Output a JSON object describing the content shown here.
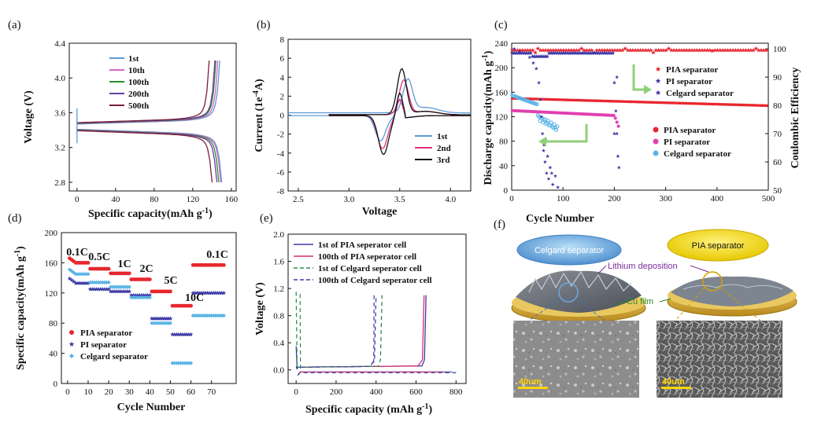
{
  "colors": {
    "c1": "#5b9bd5",
    "c10": "#d966c5",
    "c100": "#2e8b2e",
    "c200": "#6a3fa0",
    "c500": "#7a1f3a",
    "b1": "#5b9bd5",
    "b2": "#e0307a",
    "b3": "#111111",
    "pia": "#e8262e",
    "pi": "#3d3aa8",
    "celg": "#5ab4e5",
    "e1": "#3d3aa8",
    "e2": "#d92d7a",
    "e3": "#2e8b4a",
    "e4": "#3d3aa8",
    "arrow": "#8fd07a"
  },
  "chart_data": [
    {
      "id": "a",
      "panel_label": "(a)",
      "type": "line",
      "xlabel": "Specific capacity(mAh g",
      "xlabel_sup": "-1",
      "xlabel_tail": ")",
      "ylabel": "Voltage (V)",
      "xlim": [
        -8,
        165
      ],
      "ylim": [
        2.7,
        4.4
      ],
      "xticks": [
        0,
        40,
        80,
        120,
        160
      ],
      "yticks": [
        2.8,
        3.2,
        3.6,
        4.0,
        4.4
      ],
      "legend_position": "top-center",
      "series": [
        {
          "name": "1st",
          "color_key": "c1",
          "charge_end": 148,
          "discharge_end": 150
        },
        {
          "name": "10th",
          "color_key": "c10",
          "charge_end": 146,
          "discharge_end": 149
        },
        {
          "name": "100th",
          "color_key": "c100",
          "charge_end": 144,
          "discharge_end": 147
        },
        {
          "name": "200th",
          "color_key": "c200",
          "charge_end": 143,
          "discharge_end": 145
        },
        {
          "name": "500th",
          "color_key": "c500",
          "charge_end": 137,
          "discharge_end": 140
        }
      ]
    },
    {
      "id": "b",
      "panel_label": "(b)",
      "type": "line",
      "xlabel": "Voltage",
      "ylabel": "Current (1e",
      "ylabel_sup": "-4",
      "ylabel_tail": "A)",
      "xlim": [
        2.4,
        4.2
      ],
      "ylim": [
        -8,
        8
      ],
      "xticks": [
        2.5,
        3.0,
        3.5,
        4.0
      ],
      "yticks": [
        -8,
        -6,
        -4,
        -2,
        0,
        2,
        4,
        6,
        8
      ],
      "legend_position": "bottom-right",
      "series": [
        {
          "name": "1st",
          "color_key": "b1",
          "ox_peak": [
            3.58,
            3.4
          ],
          "red_peak": [
            3.31,
            -2.6
          ]
        },
        {
          "name": "2nd",
          "color_key": "b2",
          "ox_peak": [
            3.54,
            3.6
          ],
          "red_peak": [
            3.33,
            -3.4
          ]
        },
        {
          "name": "3rd",
          "color_key": "b3",
          "ox_peak": [
            3.52,
            4.8
          ],
          "red_peak": [
            3.34,
            -4.0
          ]
        }
      ]
    },
    {
      "id": "c",
      "panel_label": "(c)",
      "type": "scatter",
      "xlabel": "Cycle Number",
      "ylabel": "Discharge capacity(mAh g",
      "ylabel_sup": "-1",
      "ylabel_tail": ")",
      "ylabel_right": "Coulombic Efficiency",
      "xlim": [
        0,
        500
      ],
      "ylim": [
        0,
        240
      ],
      "ylim_right": [
        50,
        102
      ],
      "xticks": [
        0,
        100,
        200,
        300,
        400,
        500
      ],
      "yticks": [
        0,
        40,
        80,
        120,
        160,
        200,
        240
      ],
      "yticks_right": [
        50,
        60,
        70,
        80,
        90,
        100
      ],
      "legend_top": [
        "PIA separator",
        "PI separator",
        "Celgard separator"
      ],
      "legend_bottom": [
        "PIA separator",
        "PI separator",
        "Celgard separator"
      ],
      "series_summary": {
        "pia_capacity": {
          "start": 150,
          "end": 138,
          "cycles": 500
        },
        "pi_capacity": {
          "start": 130,
          "at_200": 122,
          "fails_at": 210
        },
        "celgard_capacity": {
          "start": 155,
          "fails_at": 90
        },
        "pia_ce": 99.5,
        "pi_ce_start": 98.5,
        "celgard_ce_start": 100
      }
    },
    {
      "id": "d",
      "panel_label": "(d)",
      "type": "scatter",
      "xlabel": "Cycle Number",
      "ylabel": "Specific capacity(mAh g",
      "ylabel_sup": "-1",
      "ylabel_tail": ")",
      "xlim": [
        -3,
        82
      ],
      "ylim": [
        0,
        200
      ],
      "xticks": [
        0,
        10,
        20,
        30,
        40,
        50,
        60,
        70
      ],
      "yticks": [
        0,
        40,
        80,
        120,
        160,
        200
      ],
      "legend_position": "bottom-left",
      "rates": [
        "0.1C",
        "0.5C",
        "1C",
        "2C",
        "5C",
        "10C",
        "0.1C"
      ],
      "series": [
        {
          "name": "PIA separator",
          "color_key": "pia",
          "marker": "circle",
          "values": [
            160,
            152,
            146,
            138,
            122,
            103,
            157
          ]
        },
        {
          "name": "PI separator",
          "color_key": "pi",
          "marker": "star",
          "values": [
            133,
            125,
            122,
            117,
            86,
            65,
            120
          ]
        },
        {
          "name": "Celgard separator",
          "color_key": "celg",
          "marker": "diamond",
          "values": [
            145,
            134,
            128,
            114,
            80,
            27,
            90
          ]
        }
      ]
    },
    {
      "id": "e",
      "panel_label": "(e)",
      "type": "line",
      "xlabel": "Specific capacity (mAh g",
      "xlabel_sup": "-1",
      "xlabel_tail": ")",
      "ylabel": "Voltage (V)",
      "xlim": [
        -40,
        850
      ],
      "ylim": [
        -0.2,
        2.0
      ],
      "xticks": [
        0,
        200,
        400,
        600,
        800
      ],
      "yticks": [
        0.0,
        0.4,
        0.8,
        1.2,
        1.6,
        2.0
      ],
      "legend_position": "top-left",
      "series": [
        {
          "name": "1st of PIA seperator cell",
          "color_key": "e1",
          "dash": "solid",
          "end_capacity": 650
        },
        {
          "name": "100th of PIA seperator cell",
          "color_key": "e2",
          "dash": "solid",
          "end_capacity": 640
        },
        {
          "name": "1st of Celgard seperator cell",
          "color_key": "e3",
          "dash": "dash",
          "end_capacity": 430
        },
        {
          "name": "100th of Celgard  seperator cell",
          "color_key": "e4",
          "dash": "dash",
          "end_capacity": 400
        }
      ]
    }
  ],
  "panel_f": {
    "panel_label": "(f)",
    "celgard_label": "Celgard separator",
    "pia_label": "PIA separator",
    "lithium_label": "Lithium deposition",
    "cu_label": "Cu film",
    "scale_left": "40um",
    "scale_right": "40um"
  }
}
